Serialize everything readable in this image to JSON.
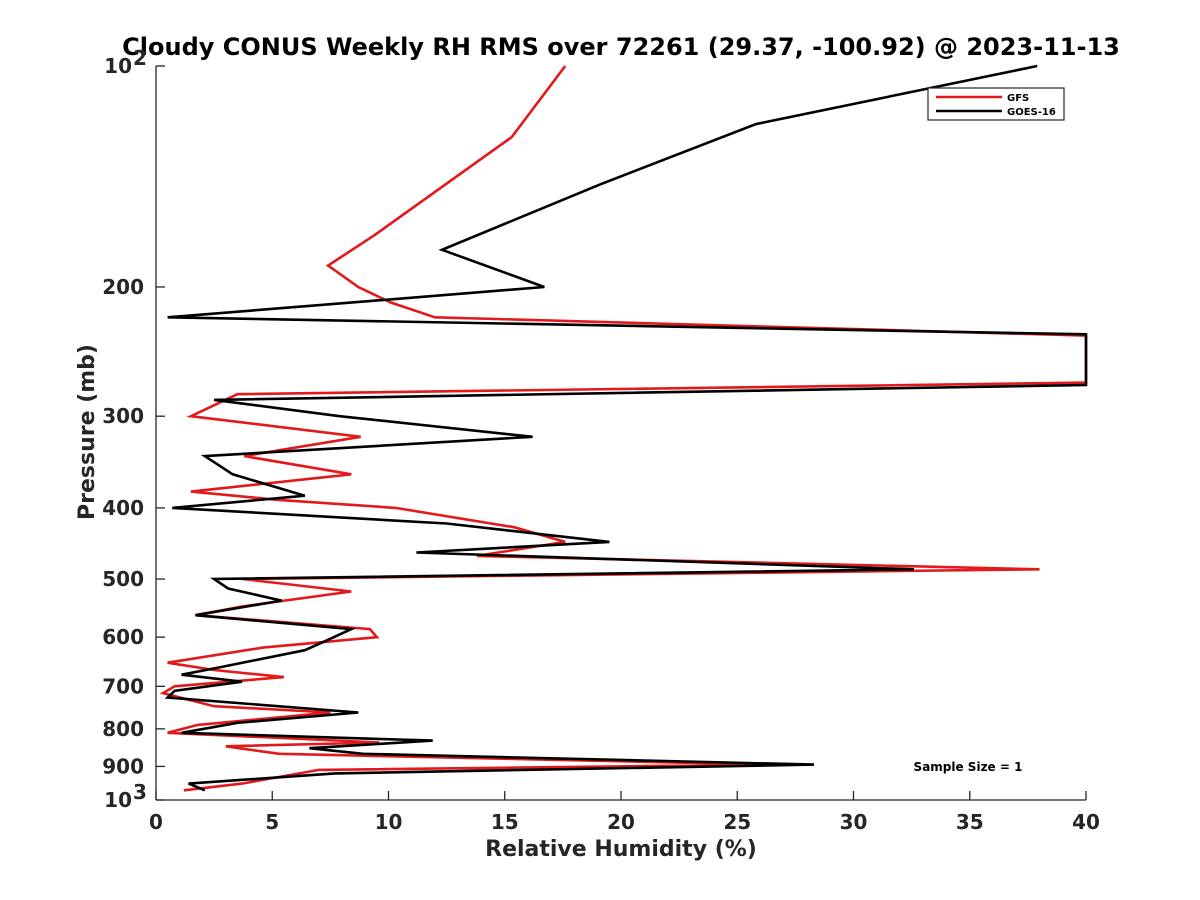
{
  "chart_data": {
    "type": "line",
    "title": "Cloudy CONUS Weekly RH RMS over 72261 (29.37, -100.92) @ 2023-11-13",
    "xlabel": "Relative Humidity (%)",
    "ylabel": "Pressure (mb)",
    "xlim": [
      0,
      40
    ],
    "ylim": [
      100,
      1000
    ],
    "yscale": "log",
    "y_reversed": true,
    "x_ticks": [
      "0",
      "5",
      "10",
      "15",
      "20",
      "25",
      "30",
      "35",
      "40"
    ],
    "y_ticks": [
      {
        "value": 100,
        "label": "10",
        "sup": "2"
      },
      {
        "value": 200,
        "label": "200",
        "sup": ""
      },
      {
        "value": 300,
        "label": "300",
        "sup": ""
      },
      {
        "value": 400,
        "label": "400",
        "sup": ""
      },
      {
        "value": 500,
        "label": "500",
        "sup": ""
      },
      {
        "value": 600,
        "label": "600",
        "sup": ""
      },
      {
        "value": 700,
        "label": "700",
        "sup": ""
      },
      {
        "value": 800,
        "label": "800",
        "sup": ""
      },
      {
        "value": 900,
        "label": "900",
        "sup": ""
      },
      {
        "value": 1000,
        "label": "10",
        "sup": "3"
      }
    ],
    "legend": {
      "position": "top-right"
    },
    "annotation": "Sample Size = 1",
    "series": [
      {
        "name": "GFS",
        "color": "#e31a1c",
        "points": [
          [
            17.6,
            100
          ],
          [
            15.3,
            125
          ],
          [
            9.4,
            170
          ],
          [
            7.4,
            187
          ],
          [
            8.7,
            200
          ],
          [
            10.1,
            210
          ],
          [
            12.0,
            220
          ],
          [
            40,
            233
          ],
          [
            40,
            270
          ],
          [
            3.5,
            280
          ],
          [
            1.5,
            300
          ],
          [
            8.8,
            320
          ],
          [
            3.8,
            340
          ],
          [
            8.4,
            360
          ],
          [
            1.5,
            380
          ],
          [
            5.2,
            390
          ],
          [
            10.3,
            400
          ],
          [
            15.4,
            425
          ],
          [
            17.6,
            445
          ],
          [
            13.8,
            465
          ],
          [
            38.0,
            485
          ],
          [
            3.7,
            500
          ],
          [
            8.4,
            520
          ],
          [
            3.7,
            545
          ],
          [
            1.7,
            560
          ],
          [
            9.2,
            585
          ],
          [
            9.5,
            600
          ],
          [
            4.6,
            620
          ],
          [
            0.5,
            650
          ],
          [
            2.5,
            665
          ],
          [
            5.5,
            680
          ],
          [
            0.8,
            700
          ],
          [
            0.3,
            715
          ],
          [
            2.5,
            745
          ],
          [
            7.5,
            760
          ],
          [
            1.8,
            790
          ],
          [
            0.5,
            810
          ],
          [
            9.6,
            835
          ],
          [
            3.0,
            845
          ],
          [
            5.3,
            865
          ],
          [
            26.5,
            895
          ],
          [
            7.0,
            910
          ],
          [
            3.7,
            950
          ],
          [
            1.2,
            970
          ]
        ]
      },
      {
        "name": "GOES-16",
        "color": "#000000",
        "points": [
          [
            37.9,
            100
          ],
          [
            25.8,
            120
          ],
          [
            19.1,
            145
          ],
          [
            12.3,
            178
          ],
          [
            16.7,
            200
          ],
          [
            0.5,
            220
          ],
          [
            40,
            232
          ],
          [
            40,
            272
          ],
          [
            2.5,
            285
          ],
          [
            7.9,
            300
          ],
          [
            16.2,
            320
          ],
          [
            2.1,
            340
          ],
          [
            3.3,
            360
          ],
          [
            6.4,
            385
          ],
          [
            0.7,
            400
          ],
          [
            12.5,
            420
          ],
          [
            19.5,
            445
          ],
          [
            11.2,
            460
          ],
          [
            32.6,
            485
          ],
          [
            2.5,
            500
          ],
          [
            3.1,
            515
          ],
          [
            5.4,
            535
          ],
          [
            1.7,
            560
          ],
          [
            8.4,
            585
          ],
          [
            7.4,
            605
          ],
          [
            6.4,
            625
          ],
          [
            2.7,
            660
          ],
          [
            1.1,
            675
          ],
          [
            3.7,
            690
          ],
          [
            0.8,
            710
          ],
          [
            0.5,
            725
          ],
          [
            8.7,
            760
          ],
          [
            3.5,
            785
          ],
          [
            1.1,
            810
          ],
          [
            11.9,
            830
          ],
          [
            6.6,
            850
          ],
          [
            8.9,
            865
          ],
          [
            28.3,
            895
          ],
          [
            7.7,
            920
          ],
          [
            1.4,
            950
          ],
          [
            2.1,
            970
          ]
        ]
      }
    ]
  }
}
